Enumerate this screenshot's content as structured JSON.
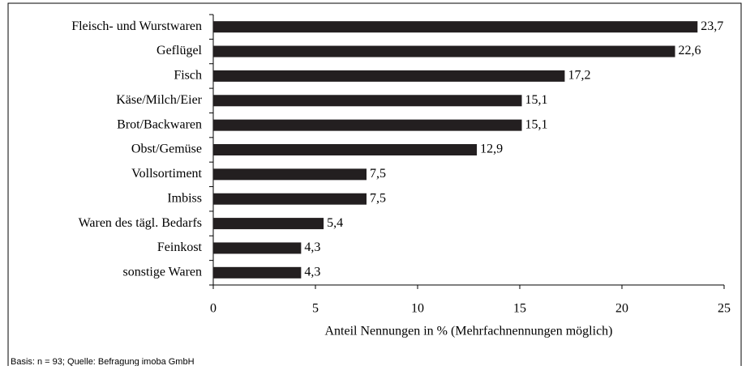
{
  "chart_data": {
    "type": "bar",
    "orientation": "horizontal",
    "categories": [
      "Fleisch- und Wurstwaren",
      "Geflügel",
      "Fisch",
      "Käse/Milch/Eier",
      "Brot/Backwaren",
      "Obst/Gemüse",
      "Vollsortiment",
      "Imbiss",
      "Waren des tägl. Bedarfs",
      "Feinkost",
      "sonstige Waren"
    ],
    "values": [
      23.7,
      22.6,
      17.2,
      15.1,
      15.1,
      12.9,
      7.5,
      7.5,
      5.4,
      4.3,
      4.3
    ],
    "value_labels": [
      "23,7",
      "22,6",
      "17,2",
      "15,1",
      "15,1",
      "12,9",
      "7,5",
      "7,5",
      "5,4",
      "4,3",
      "4,3"
    ],
    "color": "#231f20",
    "xlim": [
      0,
      25
    ],
    "xticks": [
      0,
      5,
      10,
      15,
      20,
      25
    ],
    "xlabel": "Anteil Nennungen in % (Mehrfachnennungen möglich)",
    "footnote": "Basis: n = 93; Quelle: Befragung imoba GmbH"
  }
}
